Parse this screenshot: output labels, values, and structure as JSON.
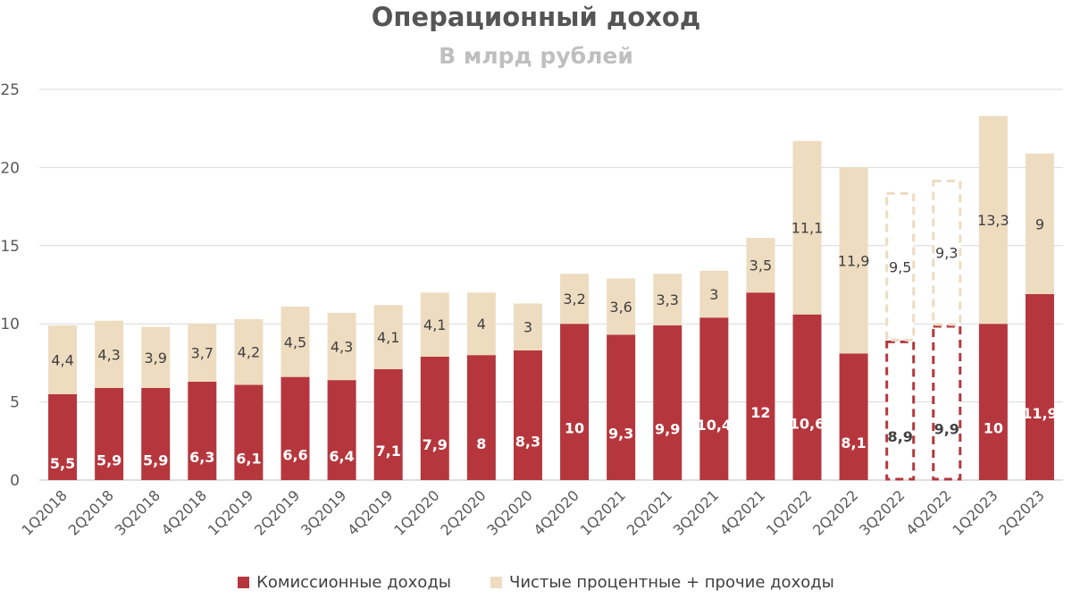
{
  "chart_data": {
    "type": "bar",
    "stacked": true,
    "title": "Операционный доход",
    "subtitle": "В млрд рублей",
    "xlabel": "",
    "ylabel": "",
    "ylim": [
      0,
      25
    ],
    "yticks": [
      0,
      5,
      10,
      15,
      20,
      25
    ],
    "grid": true,
    "legend_position": "bottom",
    "categories": [
      "1Q2018",
      "2Q2018",
      "3Q2018",
      "4Q2018",
      "1Q2019",
      "2Q2019",
      "3Q2019",
      "4Q2019",
      "1Q2020",
      "2Q2020",
      "3Q2020",
      "4Q2020",
      "1Q2021",
      "2Q2021",
      "3Q2021",
      "4Q2021",
      "1Q2022",
      "2Q2022",
      "3Q2022",
      "4Q2022",
      "1Q2023",
      "2Q2023"
    ],
    "estimated_categories": [
      "3Q2022",
      "4Q2022"
    ],
    "series": [
      {
        "name": "Комиссионные доходы",
        "color": "#b5373d",
        "values": [
          5.5,
          5.9,
          5.9,
          6.3,
          6.1,
          6.6,
          6.4,
          7.1,
          7.9,
          8,
          8.3,
          10,
          9.3,
          9.9,
          10.4,
          12,
          10.6,
          8.1,
          8.9,
          9.9,
          10,
          11.9
        ],
        "labels": [
          "5,5",
          "5,9",
          "5,9",
          "6,3",
          "6,1",
          "6,6",
          "6,4",
          "7,1",
          "7,9",
          "8",
          "8,3",
          "10",
          "9,3",
          "9,9",
          "10,4",
          "12",
          "10,6",
          "8,1",
          "8,9",
          "9,9",
          "10",
          "11,9"
        ]
      },
      {
        "name": "Чистые процентные + прочие доходы",
        "color": "#eedcc0",
        "values": [
          4.4,
          4.3,
          3.9,
          3.7,
          4.2,
          4.5,
          4.3,
          4.1,
          4.1,
          4,
          3,
          3.2,
          3.6,
          3.3,
          3,
          3.5,
          11.1,
          11.9,
          9.5,
          9.3,
          13.3,
          9
        ],
        "labels": [
          "4,4",
          "4,3",
          "3,9",
          "3,7",
          "4,2",
          "4,5",
          "4,3",
          "4,1",
          "4,1",
          "4",
          "3",
          "3,2",
          "3,6",
          "3,3",
          "3",
          "3,5",
          "11,1",
          "11,9",
          "9,5",
          "9,3",
          "13,3",
          "9"
        ]
      }
    ]
  }
}
